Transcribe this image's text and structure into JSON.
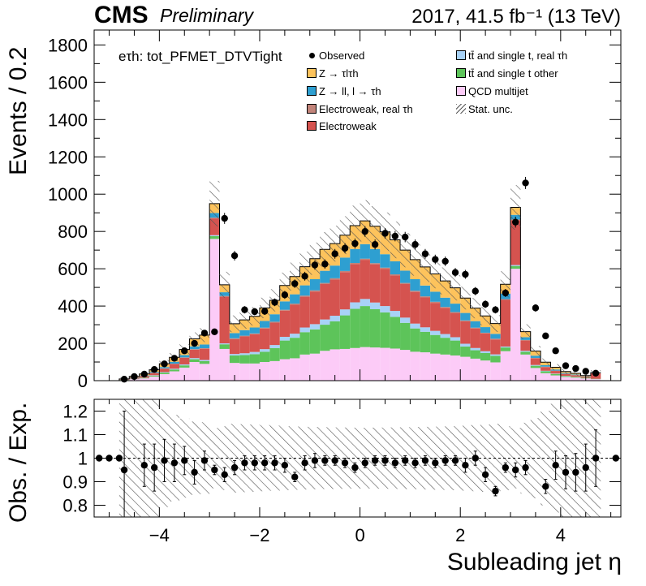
{
  "header": {
    "experiment": "CMS",
    "status": "Preliminary",
    "luminosity": "2017, 41.5 fb⁻¹ (13 TeV)"
  },
  "channel_label": "eτh: tot_PFMET_DTVTight",
  "colors": {
    "ztautau": "#fdc35c",
    "zll": "#2e9fd1",
    "ewk_real": "#c2847a",
    "ewk": "#d5534f",
    "ttbar_real": "#a8d2f7",
    "ttbar_other": "#5dc45a",
    "qcd": "#fccbf7",
    "marker": "#000000"
  },
  "chart_data": [
    {
      "type": "histogram-stacked",
      "panel": "main",
      "xlabel": "Subleading jet η",
      "ylabel": "Events / 0.2",
      "xlim": [
        -5.3,
        5.2
      ],
      "ylim": [
        0,
        1880
      ],
      "yticks": [
        0,
        200,
        400,
        600,
        800,
        1000,
        1200,
        1400,
        1600,
        1800
      ],
      "xticks": [
        -4,
        -2,
        0,
        2,
        4
      ],
      "bin_edges": [
        -4.8,
        -4.6,
        -4.4,
        -4.2,
        -4.0,
        -3.8,
        -3.6,
        -3.4,
        -3.2,
        -3.0,
        -2.8,
        -2.6,
        -2.4,
        -2.2,
        -2.0,
        -1.8,
        -1.6,
        -1.4,
        -1.2,
        -1.0,
        -0.8,
        -0.6,
        -0.4,
        -0.2,
        0.0,
        0.2,
        0.4,
        0.6,
        0.8,
        1.0,
        1.2,
        1.4,
        1.6,
        1.8,
        2.0,
        2.2,
        2.4,
        2.6,
        2.8,
        3.0,
        3.2,
        3.4,
        3.6,
        3.8,
        4.0,
        4.2,
        4.4,
        4.6,
        4.8
      ],
      "legend_position": "top",
      "series": [
        {
          "name": "QCD multijet",
          "color_key": "qcd",
          "values": [
            3,
            8,
            12,
            22,
            35,
            50,
            70,
            100,
            90,
            760,
            170,
            95,
            92,
            92,
            100,
            105,
            115,
            120,
            140,
            145,
            160,
            168,
            170,
            175,
            180,
            178,
            176,
            172,
            165,
            155,
            152,
            145,
            140,
            135,
            128,
            118,
            108,
            98,
            158,
            600,
            140,
            68,
            40,
            28,
            20,
            16,
            12,
            8
          ]
        },
        {
          "name": "tt̄ and single t other",
          "color_key": "ttbar_other",
          "values": [
            1,
            2,
            3,
            5,
            8,
            10,
            12,
            15,
            15,
            15,
            25,
            40,
            45,
            50,
            55,
            70,
            100,
            110,
            120,
            130,
            140,
            150,
            180,
            210,
            220,
            205,
            190,
            170,
            145,
            125,
            110,
            100,
            90,
            80,
            55,
            45,
            40,
            35,
            20,
            15,
            15,
            12,
            10,
            8,
            5,
            4,
            3,
            2
          ]
        },
        {
          "name": "tt̄ and single t, real τh",
          "color_key": "ttbar_real",
          "values": [
            0,
            1,
            1,
            2,
            3,
            4,
            5,
            6,
            6,
            5,
            5,
            8,
            10,
            12,
            14,
            16,
            20,
            22,
            25,
            28,
            28,
            30,
            32,
            35,
            38,
            36,
            34,
            32,
            28,
            26,
            24,
            22,
            20,
            18,
            15,
            12,
            10,
            8,
            5,
            5,
            5,
            4,
            3,
            2,
            1,
            1,
            0,
            0
          ]
        },
        {
          "name": "Electroweak",
          "color_key": "ewk",
          "values": [
            2,
            5,
            8,
            12,
            18,
            25,
            35,
            45,
            60,
            90,
            250,
            80,
            90,
            95,
            110,
            120,
            140,
            155,
            165,
            175,
            190,
            195,
            200,
            205,
            210,
            205,
            200,
            190,
            180,
            170,
            160,
            150,
            140,
            130,
            120,
            105,
            95,
            80,
            250,
            240,
            55,
            35,
            20,
            14,
            10,
            8,
            5,
            30
          ]
        },
        {
          "name": "Electroweak, real τh",
          "color_key": "ewk_real",
          "values": [
            0,
            0,
            1,
            1,
            2,
            2,
            3,
            3,
            3,
            4,
            4,
            4,
            4,
            4,
            5,
            5,
            5,
            6,
            6,
            6,
            6,
            6,
            6,
            6,
            6,
            6,
            6,
            6,
            6,
            6,
            6,
            6,
            5,
            5,
            5,
            4,
            4,
            4,
            4,
            4,
            3,
            3,
            2,
            2,
            1,
            1,
            1,
            0
          ]
        },
        {
          "name": "Z → ll, l → τh",
          "color_key": "zll",
          "values": [
            1,
            2,
            3,
            5,
            7,
            10,
            12,
            15,
            20,
            25,
            20,
            28,
            30,
            32,
            36,
            40,
            45,
            50,
            55,
            60,
            65,
            68,
            72,
            75,
            78,
            76,
            72,
            70,
            66,
            62,
            58,
            54,
            50,
            45,
            40,
            35,
            30,
            26,
            30,
            25,
            15,
            12,
            8,
            6,
            4,
            3,
            2,
            1
          ]
        },
        {
          "name": "Z → τlτh",
          "color_key": "ztautau",
          "values": [
            2,
            5,
            8,
            12,
            18,
            24,
            30,
            40,
            50,
            50,
            40,
            50,
            55,
            60,
            70,
            75,
            85,
            95,
            100,
            110,
            115,
            118,
            120,
            125,
            125,
            122,
            120,
            115,
            110,
            105,
            100,
            95,
            90,
            85,
            80,
            70,
            60,
            55,
            50,
            40,
            30,
            25,
            16,
            12,
            8,
            6,
            4,
            2
          ]
        }
      ],
      "data": {
        "name": "Observed",
        "values": [
          8,
          22,
          35,
          60,
          90,
          120,
          160,
          200,
          255,
          262,
          870,
          670,
          380,
          370,
          372,
          420,
          460,
          520,
          560,
          620,
          625,
          680,
          710,
          735,
          800,
          730,
          790,
          775,
          770,
          730,
          680,
          650,
          640,
          580,
          570,
          480,
          410,
          380,
          470,
          850,
          1060,
          390,
          240,
          160,
          80,
          65,
          50,
          40
        ]
      },
      "stat_unc_label": "Stat. unc.",
      "stat_unc_fraction": 0.12
    },
    {
      "type": "ratio",
      "panel": "ratio",
      "xlabel": "Subleading jet η",
      "ylabel": "Obs. / Exp.",
      "xlim": [
        -5.3,
        5.2
      ],
      "ylim": [
        0.75,
        1.25
      ],
      "yticks": [
        0.8,
        0.9,
        1.0,
        1.1,
        1.2
      ],
      "ytick_labels": [
        "0.8",
        "0.9",
        "1",
        "1.1",
        "1.2"
      ],
      "xticks": [
        -4,
        -2,
        0,
        2,
        4
      ],
      "reference_line": 1.0,
      "points_x": [
        -5.2,
        -5.0,
        -4.8,
        -4.7,
        -4.3,
        -4.1,
        -3.9,
        -3.7,
        -3.5,
        -3.3,
        -3.1,
        -2.9,
        -2.7,
        -2.5,
        -2.3,
        -2.1,
        -1.9,
        -1.7,
        -1.5,
        -1.3,
        -1.1,
        -0.9,
        -0.7,
        -0.5,
        -0.3,
        -0.1,
        0.1,
        0.3,
        0.5,
        0.7,
        0.9,
        1.1,
        1.3,
        1.5,
        1.7,
        1.9,
        2.1,
        2.3,
        2.5,
        2.7,
        2.9,
        3.1,
        3.3,
        3.7,
        3.9,
        4.1,
        4.3,
        4.5,
        4.7,
        5.1
      ],
      "points_y": [
        1.0,
        1.0,
        1.0,
        0.95,
        0.97,
        0.96,
        0.99,
        0.98,
        0.99,
        0.94,
        0.99,
        0.95,
        0.93,
        0.96,
        0.98,
        0.98,
        0.98,
        0.98,
        0.97,
        0.92,
        0.98,
        0.99,
        0.99,
        0.99,
        0.98,
        0.96,
        0.98,
        0.99,
        0.99,
        0.98,
        0.99,
        0.98,
        0.99,
        0.98,
        0.99,
        0.99,
        0.97,
        1.0,
        0.93,
        0.86,
        0.96,
        0.95,
        0.96,
        0.88,
        0.97,
        0.94,
        0.94,
        0.96,
        1.0,
        1.0
      ],
      "errors": [
        0,
        0,
        0,
        0.25,
        0.09,
        0.1,
        0.09,
        0.08,
        0.06,
        0.05,
        0.04,
        0.02,
        0.03,
        0.03,
        0.03,
        0.03,
        0.03,
        0.03,
        0.03,
        0.02,
        0.03,
        0.03,
        0.02,
        0.02,
        0.02,
        0.02,
        0.02,
        0.02,
        0.02,
        0.02,
        0.02,
        0.02,
        0.02,
        0.02,
        0.02,
        0.02,
        0.03,
        0.03,
        0.03,
        0.02,
        0.02,
        0.03,
        0.03,
        0.03,
        0.06,
        0.07,
        0.08,
        0.1,
        0.12,
        0
      ]
    }
  ]
}
